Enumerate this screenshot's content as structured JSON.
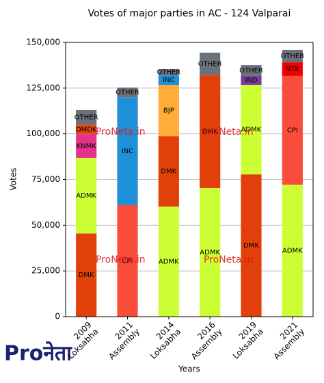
{
  "chart_data": {
    "type": "stacked_bar",
    "title": "Votes of major parties in AC - 124 Valparai",
    "x_label": "Years",
    "y_label": "Votes",
    "watermark": "ProNeta.in",
    "logo": "Proनेता",
    "categories": [
      [
        "2009",
        "Loksabha"
      ],
      [
        "2011",
        "Assembly"
      ],
      [
        "2014",
        "Loksabha"
      ],
      [
        "2016",
        "Assembly"
      ],
      [
        "2019",
        "Loksabha"
      ],
      [
        "2021",
        "Assembly"
      ]
    ],
    "colors": {
      "DMK": "#e2400a",
      "ADMK": "#ccff33",
      "KNMK": "#e3338c",
      "DMDK": "#e34a12",
      "OTHER": "#6b7179",
      "CPI": "#f94c3a",
      "INC": "#1e90d8",
      "BJP": "#ffac38",
      "IND": "#7a3aa0",
      "NTK": "#f00000"
    },
    "stacks": [
      [
        {
          "name": "DMK",
          "value": 45500
        },
        {
          "name": "ADMK",
          "value": 41300
        },
        {
          "name": "KNMK",
          "value": 13000
        },
        {
          "name": "DMDK",
          "value": 5200
        },
        {
          "name": "OTHER",
          "value": 8000
        }
      ],
      [
        {
          "name": "CPI",
          "value": 61000
        },
        {
          "name": "INC",
          "value": 59000
        },
        {
          "name": "OTHER",
          "value": 5300
        }
      ],
      [
        {
          "name": "ADMK",
          "value": 60200
        },
        {
          "name": "DMK",
          "value": 38500
        },
        {
          "name": "BJP",
          "value": 28100
        },
        {
          "name": "INC",
          "value": 5200
        },
        {
          "name": "OTHER",
          "value": 3400
        }
      ],
      [
        {
          "name": "ADMK",
          "value": 70300
        },
        {
          "name": "DMK",
          "value": 61700
        },
        {
          "name": "OTHER",
          "value": 12400
        }
      ],
      [
        {
          "name": "DMK",
          "value": 77800
        },
        {
          "name": "ADMK",
          "value": 49000
        },
        {
          "name": "IND",
          "value": 4900
        },
        {
          "name": "OTHER",
          "value": 5900
        }
      ],
      [
        {
          "name": "ADMK",
          "value": 72200
        },
        {
          "name": "CPI",
          "value": 59500
        },
        {
          "name": "NTK",
          "value": 7400
        },
        {
          "name": "OTHER",
          "value": 6800
        }
      ]
    ],
    "ylim": [
      0,
      150000
    ],
    "yticks": [
      0,
      {
        "value": 25000,
        "label": "25,000"
      },
      {
        "value": 50000,
        "label": "50,000"
      },
      {
        "value": 75000,
        "label": "75,000"
      },
      {
        "value": 100000,
        "label": "100,000"
      },
      {
        "value": 125000,
        "label": "125,000"
      },
      {
        "value": 150000,
        "label": "150,000"
      }
    ],
    "grid": true
  }
}
